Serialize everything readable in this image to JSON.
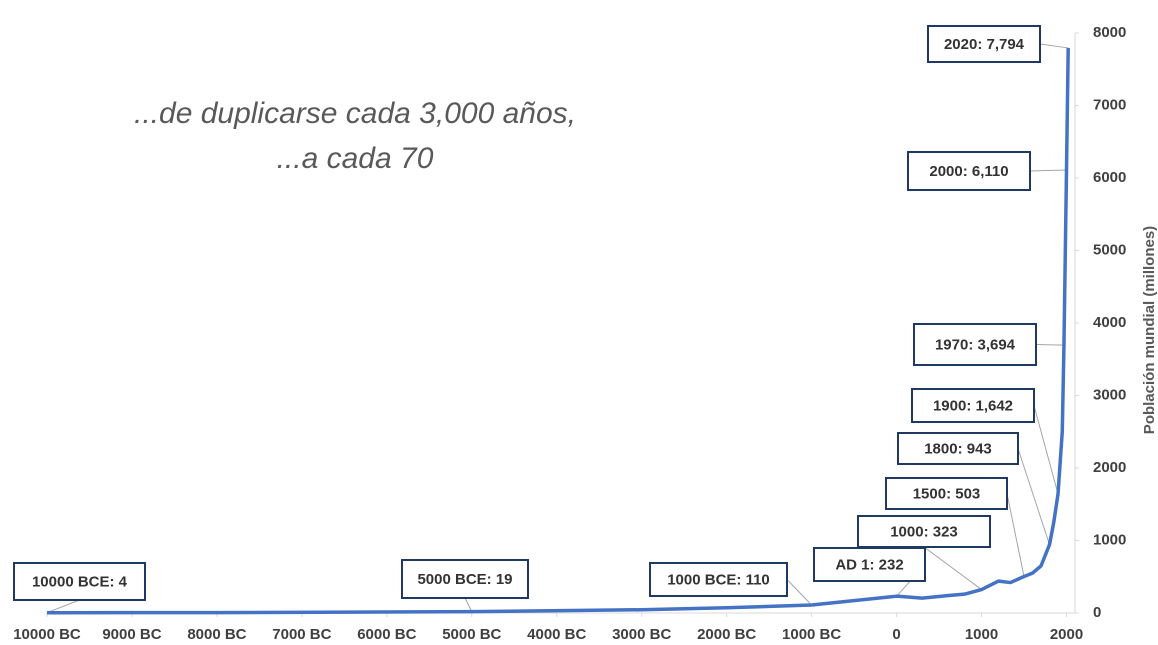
{
  "chart_data": {
    "type": "line",
    "title": "...de duplicarse cada 3,000 años,",
    "subtitle": "...a cada 70",
    "y_label": "Población mundial (millones)",
    "x": [
      -10000,
      -8000,
      -5000,
      -3000,
      -2000,
      -1000,
      1,
      300,
      600,
      800,
      1000,
      1200,
      1340,
      1500,
      1600,
      1700,
      1800,
      1850,
      1900,
      1950,
      1970,
      2000,
      2010,
      2020
    ],
    "series": [
      {
        "color": "#4472c4",
        "values": [
          4,
          5,
          19,
          45,
          72,
          110,
          232,
          205,
          240,
          260,
          323,
          440,
          420,
          503,
          550,
          650,
          943,
          1250,
          1642,
          2500,
          3694,
          6110,
          6950,
          7794
        ],
        "value_labels": [
          "10000 BCE: 4",
          null,
          "5000 BCE: 19",
          null,
          null,
          "1000 BCE: 110",
          "AD 1: 232",
          null,
          null,
          null,
          "1000: 323",
          null,
          null,
          "1500: 503",
          null,
          null,
          "1800: 943",
          null,
          "1900: 1,642",
          null,
          "1970: 3,694",
          "2000: 6,110",
          null,
          "2020: 7,794"
        ]
      }
    ],
    "xlim": [
      -10000,
      2100
    ],
    "ylim": [
      0,
      8000
    ],
    "xticks": [
      {
        "value": -10000,
        "label": "10000 BC"
      },
      {
        "value": -9000,
        "label": "9000 BC"
      },
      {
        "value": -8000,
        "label": "8000 BC"
      },
      {
        "value": -7000,
        "label": "7000 BC"
      },
      {
        "value": -6000,
        "label": "6000 BC"
      },
      {
        "value": -5000,
        "label": "5000 BC"
      },
      {
        "value": -4000,
        "label": "4000 BC"
      },
      {
        "value": -3000,
        "label": "3000 BC"
      },
      {
        "value": -2000,
        "label": "2000 BC"
      },
      {
        "value": -1000,
        "label": "1000 BC"
      },
      0,
      1000,
      2000
    ],
    "yticks": [
      0,
      1000,
      2000,
      3000,
      4000,
      5000,
      6000,
      7000,
      8000
    ],
    "grid": false
  }
}
